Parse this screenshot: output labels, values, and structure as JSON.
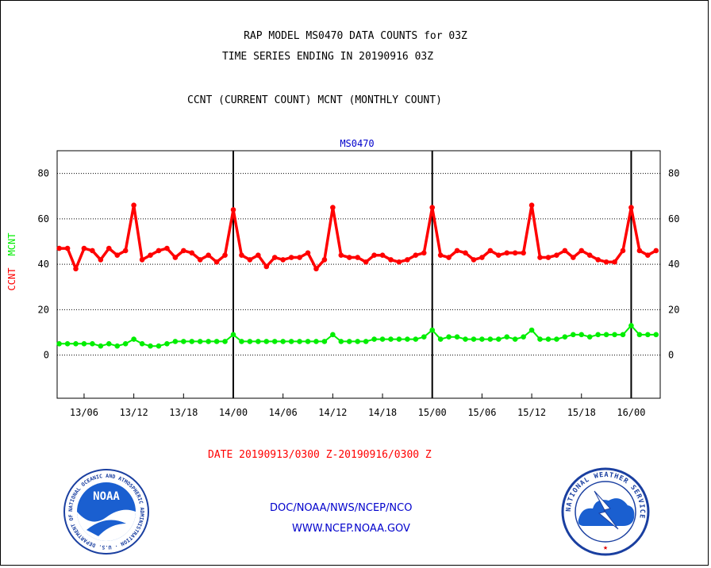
{
  "header": {
    "title_line1": "RAP MODEL MS0470 DATA COUNTS for 03Z",
    "title_line2": "TIME SERIES ENDING IN 20190916 03Z",
    "subtitle": "CCNT (CURRENT COUNT) MCNT (MONTHLY COUNT)"
  },
  "footer": {
    "date_range": "DATE 20190913/0300 Z-20190916/0300 Z",
    "agency_line": "DOC/NOAA/NWS/NCEP/NCO",
    "url_line": "WWW.NCEP.NOAA.GOV"
  },
  "logos": {
    "noaa_text": "NOAA",
    "noaa_ring": "NATIONAL OCEANIC AND ATMOSPHERIC ADMINISTRATION · U.S. DEPARTMENT OF COMMERCE",
    "nws_ring": "NATIONAL WEATHER SERVICE"
  },
  "colors": {
    "ccnt": "#ff0000",
    "mcnt": "#00ee00",
    "station_label": "#0000cc",
    "grid": "#000000"
  },
  "chart_data": {
    "type": "line",
    "station_label": "MS0470",
    "ylabel_parts": [
      {
        "text": "CCNT",
        "color": "#ff0000"
      },
      {
        "text": "MCNT",
        "color": "#00ee00"
      }
    ],
    "ylim": [
      -19,
      90
    ],
    "yticks": [
      0,
      20,
      40,
      60,
      80
    ],
    "x_unit": "hours since 2019-09-13 03Z",
    "xlim": [
      -0.25,
      72.5
    ],
    "xticks": [
      {
        "x": 3,
        "label": "13/06"
      },
      {
        "x": 9,
        "label": "13/12"
      },
      {
        "x": 15,
        "label": "13/18"
      },
      {
        "x": 21,
        "label": "14/00"
      },
      {
        "x": 27,
        "label": "14/06"
      },
      {
        "x": 33,
        "label": "14/12"
      },
      {
        "x": 39,
        "label": "14/18"
      },
      {
        "x": 45,
        "label": "15/00"
      },
      {
        "x": 51,
        "label": "15/06"
      },
      {
        "x": 57,
        "label": "15/12"
      },
      {
        "x": 63,
        "label": "15/18"
      },
      {
        "x": 69,
        "label": "16/00"
      }
    ],
    "day_lines": [
      21,
      45,
      69
    ],
    "grid": "horizontal dotted",
    "series": [
      {
        "name": "CCNT",
        "color": "#ff0000",
        "values": [
          47,
          47,
          38,
          47,
          46,
          42,
          47,
          44,
          46,
          66,
          42,
          44,
          46,
          47,
          43,
          46,
          45,
          42,
          44,
          41,
          44,
          64,
          44,
          42,
          44,
          39,
          43,
          42,
          43,
          43,
          45,
          38,
          42,
          65,
          44,
          43,
          43,
          41,
          44,
          44,
          42,
          41,
          42,
          44,
          45,
          65,
          44,
          43,
          46,
          45,
          42,
          43,
          46,
          44,
          45,
          45,
          45,
          66,
          43,
          43,
          44,
          46,
          43,
          46,
          44,
          42,
          41,
          41,
          46,
          65,
          46,
          44,
          46
        ]
      },
      {
        "name": "MCNT",
        "color": "#00ee00",
        "values": [
          5,
          5,
          5,
          5,
          5,
          4,
          5,
          4,
          5,
          7,
          5,
          4,
          4,
          5,
          6,
          6,
          6,
          6,
          6,
          6,
          6,
          9,
          6,
          6,
          6,
          6,
          6,
          6,
          6,
          6,
          6,
          6,
          6,
          9,
          6,
          6,
          6,
          6,
          7,
          7,
          7,
          7,
          7,
          7,
          8,
          11,
          7,
          8,
          8,
          7,
          7,
          7,
          7,
          7,
          8,
          7,
          8,
          11,
          7,
          7,
          7,
          8,
          9,
          9,
          8,
          9,
          9,
          9,
          9,
          13,
          9,
          9,
          9
        ]
      }
    ]
  }
}
